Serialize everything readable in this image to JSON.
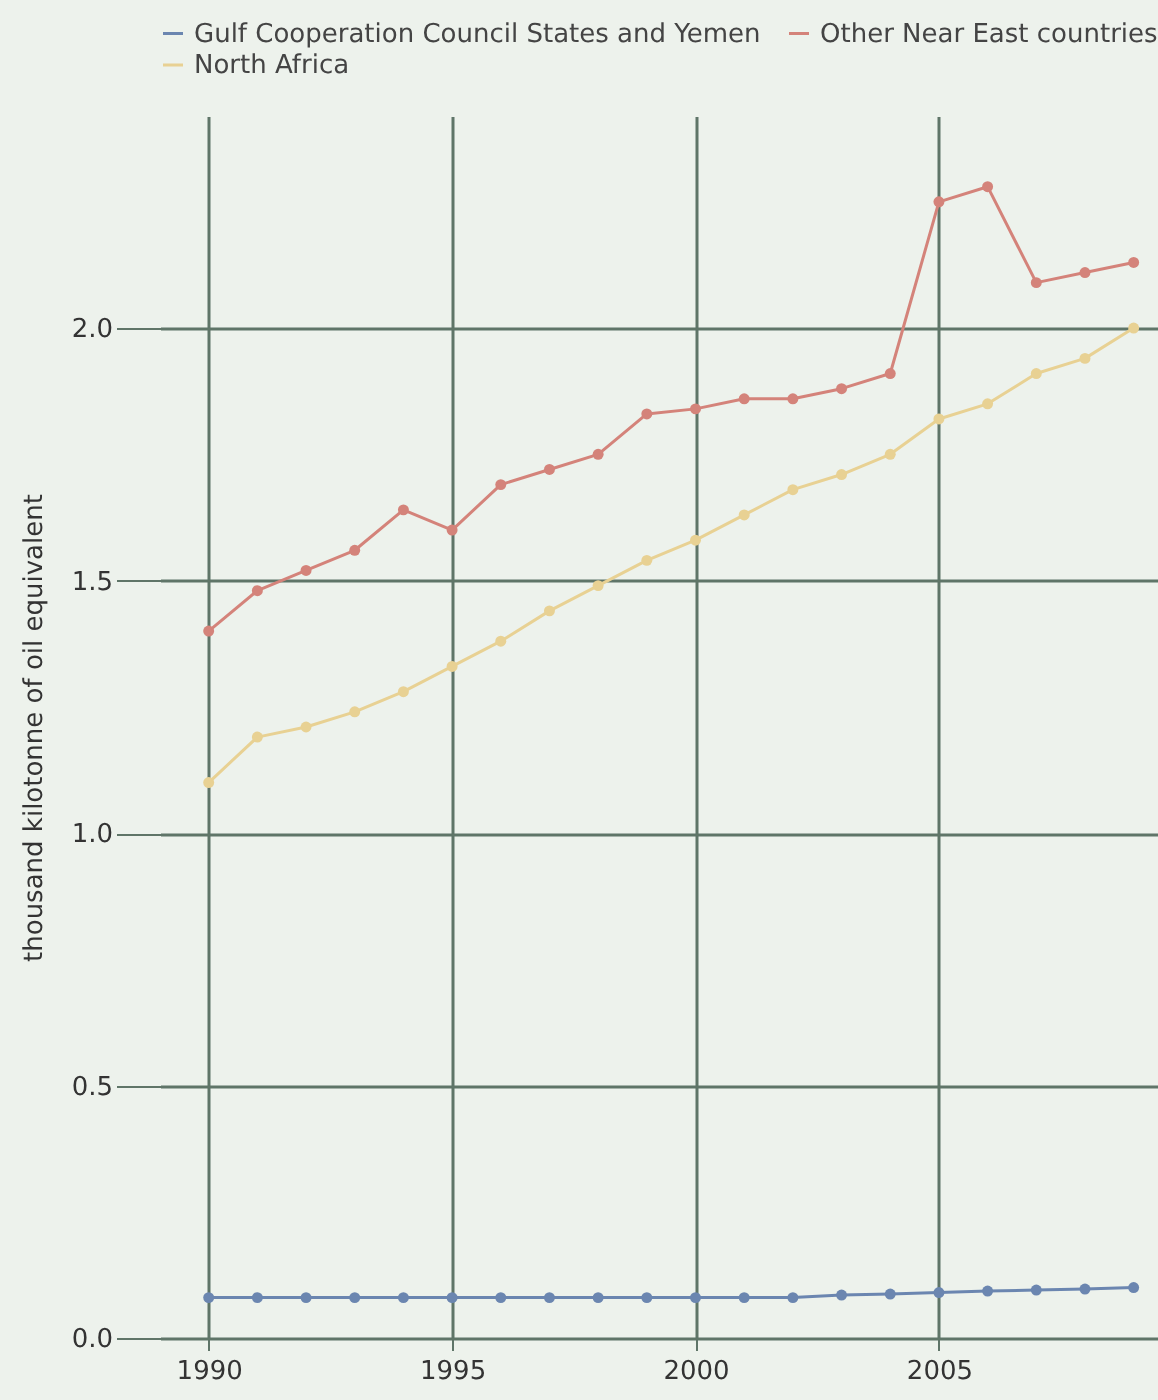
{
  "chart_data": {
    "type": "line",
    "ylabel": "thousand kilotonne of oil equivalent",
    "x": [
      1990,
      1991,
      1992,
      1993,
      1994,
      1995,
      1996,
      1997,
      1998,
      1999,
      2000,
      2001,
      2002,
      2003,
      2004,
      2005,
      2006,
      2007,
      2008,
      2009
    ],
    "series": [
      {
        "name": "Gulf Cooperation Council States and Yemen",
        "color": "#6b86b0",
        "values": [
          0.08,
          0.08,
          0.08,
          0.08,
          0.08,
          0.08,
          0.08,
          0.08,
          0.08,
          0.08,
          0.08,
          0.08,
          0.08,
          0.085,
          0.087,
          0.09,
          0.093,
          0.095,
          0.097,
          0.1
        ]
      },
      {
        "name": "Other Near East countries",
        "color": "#d4837a",
        "values": [
          1.4,
          1.48,
          1.52,
          1.56,
          1.64,
          1.6,
          1.69,
          1.72,
          1.75,
          1.83,
          1.84,
          1.86,
          1.86,
          1.88,
          1.91,
          2.25,
          2.28,
          2.09,
          2.11,
          2.13
        ]
      },
      {
        "name": "North Africa",
        "color": "#e8d193",
        "values": [
          1.1,
          1.19,
          1.21,
          1.24,
          1.28,
          1.33,
          1.38,
          1.44,
          1.49,
          1.54,
          1.58,
          1.63,
          1.68,
          1.71,
          1.75,
          1.82,
          1.85,
          1.91,
          1.94,
          2.0
        ]
      }
    ],
    "xlim": [
      1989,
      2009.5
    ],
    "xticks": [
      1990,
      1995,
      2000,
      2005
    ],
    "ylim": [
      0,
      2.42
    ],
    "yticks": [
      {
        "value": 0,
        "label": "0.0"
      },
      0.5,
      {
        "value": 1,
        "label": "1.0"
      },
      1.5,
      {
        "value": 2,
        "label": "2.0"
      }
    ],
    "grid": true,
    "legend": "top",
    "marker": "circle",
    "line_style": "solid"
  }
}
